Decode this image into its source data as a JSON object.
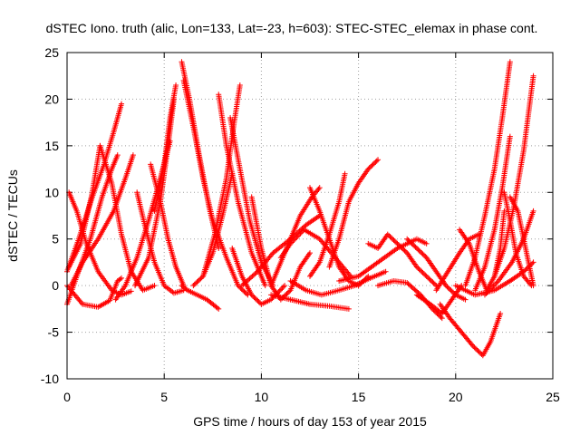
{
  "chart_data": {
    "type": "scatter",
    "title": "dSTEC Iono. truth (alic, Lon=133, Lat=-23, h=603): STEC-STEC_elemax in phase cont.",
    "xlabel": "GPS time / hours of day 153 of year 2015",
    "ylabel": "dSTEC  / TECUs",
    "xlim": [
      0,
      25
    ],
    "ylim": [
      -10,
      25
    ],
    "x_ticks": [
      0,
      5,
      10,
      15,
      20,
      25
    ],
    "y_ticks": [
      -10,
      -5,
      0,
      5,
      10,
      15,
      20,
      25
    ],
    "grid": true,
    "marker": "+",
    "color": "#ff0000",
    "series": [
      {
        "x": [
          0.0,
          0.8,
          1.6,
          2.2,
          2.6,
          2.8
        ],
        "y": [
          0.0,
          -2.0,
          -2.3,
          -1.6,
          0.5,
          0.8
        ]
      },
      {
        "x": [
          0.0,
          0.6,
          1.3,
          1.9,
          2.4,
          2.8
        ],
        "y": [
          1.5,
          5.0,
          9.5,
          13.0,
          16.5,
          19.5
        ]
      },
      {
        "x": [
          0.0,
          0.5,
          1.2,
          1.8,
          2.3,
          2.6
        ],
        "y": [
          -2.0,
          1.0,
          5.0,
          9.5,
          12.5,
          14.0
        ]
      },
      {
        "x": [
          0.1,
          0.5,
          1.0,
          1.6,
          2.3,
          2.8,
          3.3
        ],
        "y": [
          10.0,
          8.0,
          4.5,
          1.5,
          -0.5,
          -1.0,
          -0.6
        ]
      },
      {
        "x": [
          0.1,
          0.7,
          1.3,
          1.7
        ],
        "y": [
          2.0,
          4.5,
          10.0,
          15.0
        ]
      },
      {
        "x": [
          0.2,
          0.8,
          1.6,
          2.4,
          3.0,
          3.4
        ],
        "y": [
          0.0,
          2.5,
          5.0,
          8.0,
          11.5,
          14.0
        ]
      },
      {
        "x": [
          1.7,
          2.3,
          2.8,
          3.3,
          3.9,
          4.5
        ],
        "y": [
          15.0,
          11.0,
          5.5,
          1.5,
          -0.5,
          0.0
        ]
      },
      {
        "x": [
          2.5,
          3.0,
          3.6,
          4.2,
          4.8,
          5.3
        ],
        "y": [
          -1.5,
          0.0,
          3.0,
          7.0,
          11.5,
          15.5
        ]
      },
      {
        "x": [
          3.6,
          4.0,
          4.5,
          5.0,
          5.5,
          6.0
        ],
        "y": [
          10.0,
          6.5,
          2.5,
          0.0,
          -0.8,
          -0.5
        ]
      },
      {
        "x": [
          4.3,
          4.8,
          5.2,
          5.6,
          6.0
        ],
        "y": [
          13.0,
          9.0,
          5.0,
          2.0,
          0.0
        ]
      },
      {
        "x": [
          3.5,
          4.2,
          4.8,
          5.2,
          5.5
        ],
        "y": [
          0.0,
          3.0,
          9.0,
          15.0,
          20.0
        ]
      },
      {
        "x": [
          4.5,
          5.0,
          5.3,
          5.6
        ],
        "y": [
          8.0,
          13.0,
          18.0,
          21.5
        ]
      },
      {
        "x": [
          5.9,
          6.3,
          6.8,
          7.3,
          7.8
        ],
        "y": [
          24.0,
          20.0,
          14.0,
          8.5,
          4.0
        ]
      },
      {
        "x": [
          6.0,
          6.5,
          7.0,
          7.5,
          8.2,
          8.8,
          9.3
        ],
        "y": [
          22.0,
          17.0,
          11.5,
          7.0,
          3.0,
          0.0,
          -1.0
        ]
      },
      {
        "x": [
          5.9,
          6.2,
          6.7,
          7.2,
          7.8
        ],
        "y": [
          0.0,
          -0.5,
          -1.0,
          -1.5,
          -2.5
        ]
      },
      {
        "x": [
          6.5,
          7.0,
          7.5,
          8.0,
          8.5
        ],
        "y": [
          0.0,
          1.0,
          3.5,
          7.5,
          12.0
        ]
      },
      {
        "x": [
          7.8,
          8.2,
          8.8,
          9.5,
          10.2
        ],
        "y": [
          20.5,
          15.0,
          9.0,
          3.5,
          0.0
        ]
      },
      {
        "x": [
          8.4,
          8.9,
          9.4,
          10.0,
          10.6
        ],
        "y": [
          18.0,
          12.5,
          7.0,
          2.5,
          0.0
        ]
      },
      {
        "x": [
          7.0,
          7.6,
          8.2,
          8.6,
          8.9
        ],
        "y": [
          1.0,
          5.5,
          11.5,
          17.5,
          21.5
        ]
      },
      {
        "x": [
          8.5,
          9.0,
          9.5,
          10.0,
          10.5,
          11.2
        ],
        "y": [
          4.0,
          1.0,
          -1.0,
          -2.0,
          -1.5,
          0.0
        ]
      },
      {
        "x": [
          9.5,
          10.0,
          10.5,
          11.0,
          11.5,
          12.0,
          12.5
        ],
        "y": [
          9.5,
          4.0,
          0.0,
          -1.5,
          -0.5,
          2.0,
          3.5
        ]
      },
      {
        "x": [
          9.0,
          9.8,
          10.6,
          11.5,
          12.3,
          13.0
        ],
        "y": [
          0.0,
          1.5,
          3.5,
          5.0,
          6.5,
          7.5
        ]
      },
      {
        "x": [
          10.5,
          11.2,
          12.0,
          12.6,
          13.0
        ],
        "y": [
          0.0,
          3.5,
          7.5,
          9.5,
          10.5
        ]
      },
      {
        "x": [
          11.0,
          11.5,
          12.2,
          13.0,
          13.8,
          14.6
        ],
        "y": [
          3.0,
          4.5,
          6.0,
          5.0,
          3.0,
          1.0
        ]
      },
      {
        "x": [
          12.5,
          13.0,
          13.5,
          14.0,
          14.5,
          15.0,
          15.5
        ],
        "y": [
          10.5,
          8.0,
          5.0,
          2.0,
          0.5,
          0.0,
          1.0
        ]
      },
      {
        "x": [
          11.5,
          12.3,
          13.1,
          14.0,
          14.8,
          15.6,
          16.4
        ],
        "y": [
          0.5,
          -0.5,
          -1.0,
          -0.5,
          0.0,
          0.8,
          1.5
        ]
      },
      {
        "x": [
          10.5,
          11.5,
          12.5,
          13.5,
          14.5
        ],
        "y": [
          -1.0,
          -1.5,
          -2.0,
          -2.2,
          -2.5
        ]
      },
      {
        "x": [
          13.5,
          14.0,
          14.5,
          15.0,
          15.5,
          16.0
        ],
        "y": [
          2.0,
          5.0,
          9.0,
          11.0,
          12.5,
          13.5
        ]
      },
      {
        "x": [
          12.5,
          13.0,
          13.5,
          14.0,
          14.3
        ],
        "y": [
          1.0,
          2.5,
          5.5,
          9.0,
          12.0
        ]
      },
      {
        "x": [
          15.5,
          16.0,
          16.5,
          17.0,
          17.5,
          18.0,
          18.5,
          19.0
        ],
        "y": [
          4.5,
          4.0,
          5.5,
          4.5,
          3.5,
          2.0,
          1.0,
          0.0
        ]
      },
      {
        "x": [
          14.0,
          15.0,
          16.0,
          17.0,
          18.0,
          18.5
        ],
        "y": [
          0.5,
          1.0,
          2.5,
          4.0,
          5.0,
          4.5
        ]
      },
      {
        "x": [
          16.0,
          16.8,
          17.5,
          18.2,
          18.8,
          19.3
        ],
        "y": [
          0.0,
          0.5,
          0.3,
          -1.0,
          -2.5,
          -3.5
        ]
      },
      {
        "x": [
          17.5,
          18.0,
          18.5,
          19.0,
          19.5,
          20.0,
          20.5
        ],
        "y": [
          5.0,
          4.0,
          3.0,
          1.5,
          0.0,
          -1.0,
          -1.5
        ]
      },
      {
        "x": [
          18.0,
          18.7,
          19.3,
          19.8,
          20.3
        ],
        "y": [
          -1.0,
          -2.0,
          -3.0,
          -1.5,
          0.0
        ]
      },
      {
        "x": [
          19.2,
          19.7,
          20.3,
          20.9,
          21.4,
          21.8,
          22.3
        ],
        "y": [
          -2.0,
          -3.5,
          -5.0,
          -6.5,
          -7.5,
          -6.0,
          -3.0
        ]
      },
      {
        "x": [
          19.0,
          19.6,
          20.2,
          20.7,
          21.2
        ],
        "y": [
          -0.5,
          1.5,
          3.5,
          5.0,
          5.5
        ]
      },
      {
        "x": [
          20.2,
          20.7,
          21.2,
          21.6,
          22.0,
          22.3,
          22.5
        ],
        "y": [
          6.0,
          4.5,
          1.5,
          -0.5,
          1.0,
          4.0,
          8.0
        ]
      },
      {
        "x": [
          20.5,
          21.0,
          21.5,
          22.0,
          22.4,
          22.8
        ],
        "y": [
          0.0,
          3.0,
          7.5,
          12.5,
          18.0,
          24.0
        ]
      },
      {
        "x": [
          21.0,
          21.5,
          22.0,
          22.4,
          22.8
        ],
        "y": [
          -0.5,
          2.0,
          6.0,
          10.5,
          16.0
        ]
      },
      {
        "x": [
          22.5,
          22.8,
          23.1,
          23.5,
          23.9
        ],
        "y": [
          10.0,
          7.0,
          3.5,
          1.0,
          0.0
        ]
      },
      {
        "x": [
          20.0,
          21.0,
          22.0,
          22.8,
          23.5,
          24.0
        ],
        "y": [
          0.0,
          -1.0,
          -0.5,
          0.5,
          1.5,
          2.5
        ]
      },
      {
        "x": [
          21.5,
          22.2,
          22.9,
          23.5,
          24.0
        ],
        "y": [
          -1.0,
          0.5,
          2.5,
          5.0,
          8.0
        ]
      },
      {
        "x": [
          22.0,
          22.5,
          23.0,
          23.5,
          24.0
        ],
        "y": [
          1.0,
          4.0,
          8.5,
          14.5,
          22.5
        ]
      },
      {
        "x": [
          22.8,
          23.2,
          23.6,
          24.0
        ],
        "y": [
          9.5,
          8.0,
          4.0,
          0.0
        ]
      }
    ]
  }
}
